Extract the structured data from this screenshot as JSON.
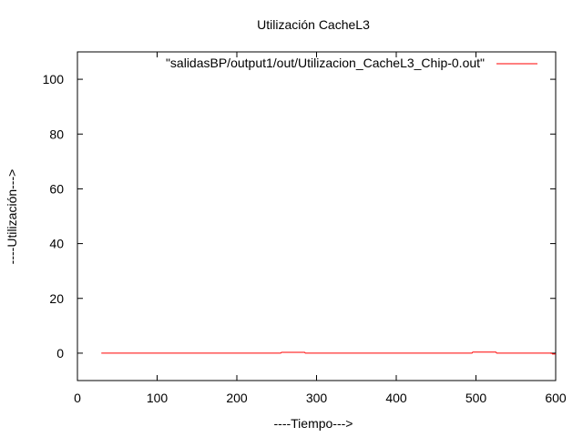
{
  "chart_data": {
    "type": "line",
    "title": "Utilización CacheL3",
    "xlabel": "----Tiempo--->",
    "ylabel": "----Utilización--->",
    "xlim": [
      0,
      600
    ],
    "ylim": [
      -10,
      110
    ],
    "xticks": [
      0,
      100,
      200,
      300,
      400,
      500,
      600
    ],
    "yticks": [
      0,
      20,
      40,
      60,
      80,
      100
    ],
    "grid": false,
    "legend_position": "top-right",
    "series": [
      {
        "name": "\"salidasBP/output1/out/Utilizacion_CacheL3_Chip-0.out\"",
        "color": "#ff0000",
        "x": [
          30,
          255,
          256,
          285,
          286,
          495,
          496,
          525,
          526,
          595,
          596,
          610
        ],
        "y": [
          0,
          0,
          0.3,
          0.3,
          0,
          0,
          0.4,
          0.4,
          0,
          0,
          -0.3,
          -0.3
        ]
      }
    ]
  }
}
